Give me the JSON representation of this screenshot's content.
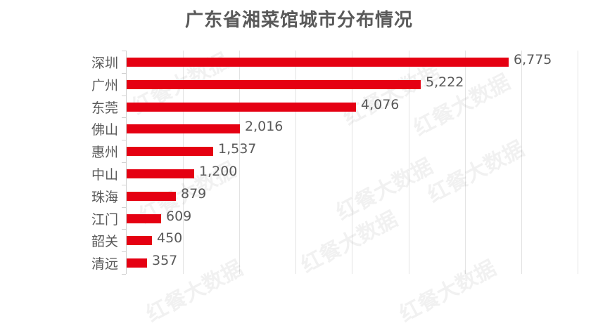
{
  "chart_data": {
    "type": "bar",
    "orientation": "horizontal",
    "title": "广东省湘菜馆城市分布情况",
    "xlabel": "",
    "ylabel": "",
    "categories": [
      "深圳",
      "广州",
      "东莞",
      "佛山",
      "惠州",
      "中山",
      "珠海",
      "江门",
      "韶关",
      "清远"
    ],
    "values": [
      6775,
      5222,
      4076,
      2016,
      1537,
      1200,
      879,
      609,
      450,
      357
    ],
    "value_labels": [
      "6,775",
      "5,222",
      "4,076",
      "2,016",
      "1,537",
      "1,200",
      "879",
      "609",
      "450",
      "357"
    ],
    "xlim": [
      0,
      8000
    ],
    "grid": "vertical gridlines every 1000, no tick labels shown",
    "legend": "none",
    "bar_color": "#e50012"
  },
  "watermark": "红餐大数据"
}
